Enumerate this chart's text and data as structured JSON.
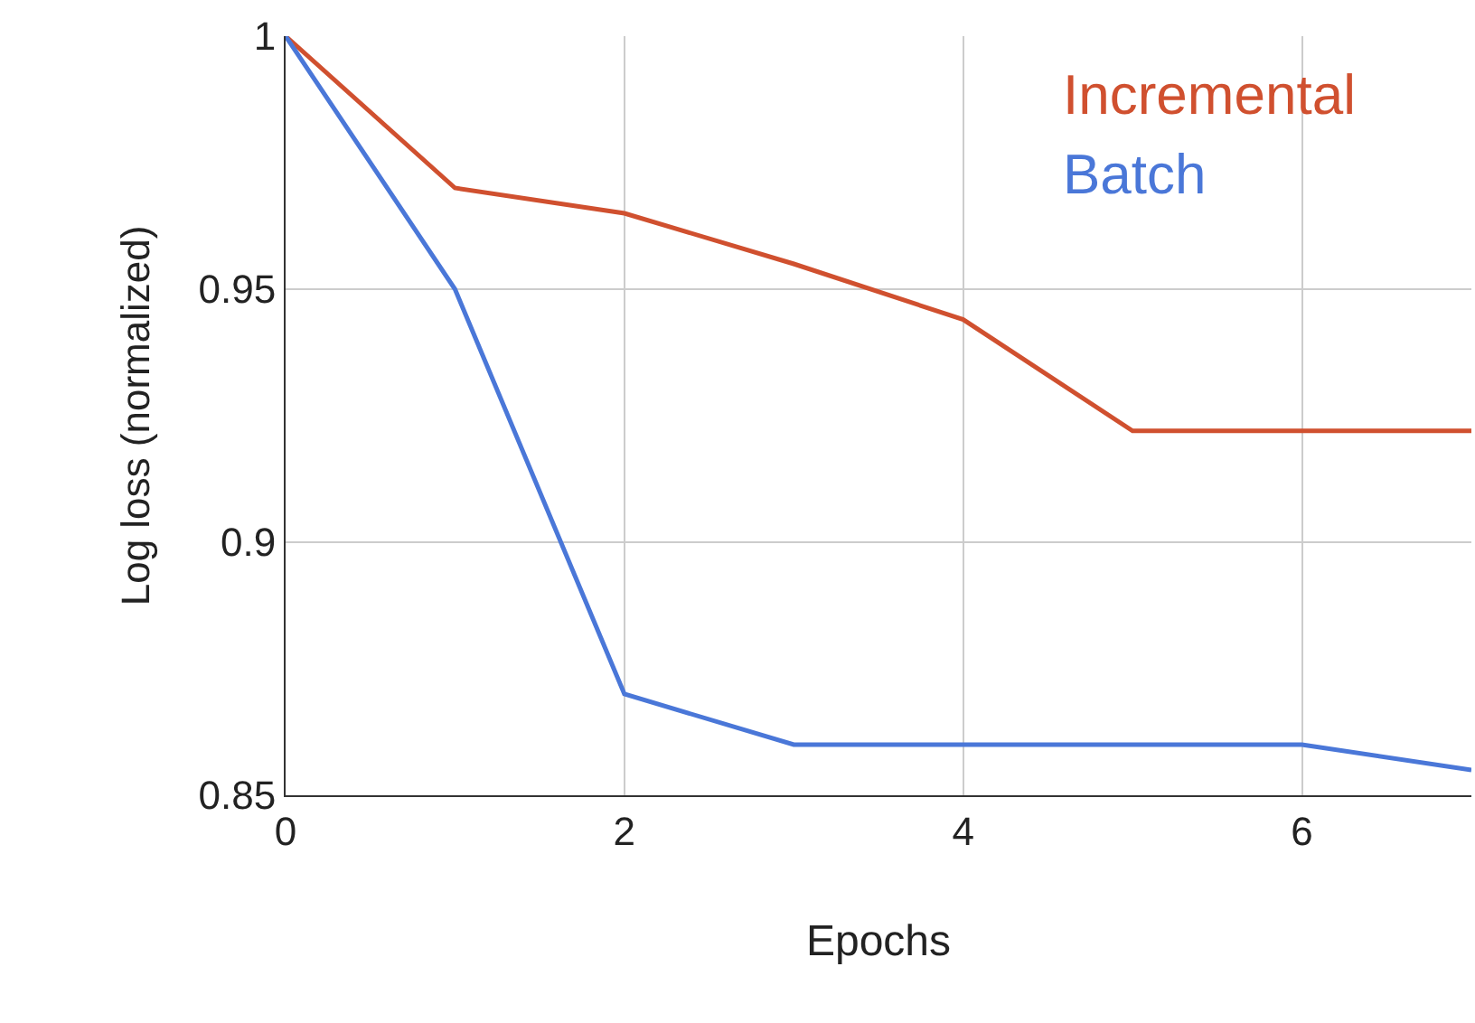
{
  "chart_data": {
    "type": "line",
    "xlabel": "Epochs",
    "ylabel": "Log loss (normalized)",
    "x": [
      0,
      1,
      2,
      3,
      4,
      5,
      6,
      7
    ],
    "series": [
      {
        "name": "Incremental",
        "color": "#d0502f",
        "values": [
          1,
          0.97,
          0.965,
          0.955,
          0.944,
          0.922,
          0.922,
          0.922
        ]
      },
      {
        "name": "Batch",
        "color": "#4a77d8",
        "values": [
          1,
          0.95,
          0.87,
          0.86,
          0.86,
          0.86,
          0.86,
          0.855
        ]
      }
    ],
    "xlim": [
      0,
      7
    ],
    "xticks": [
      0,
      2,
      4,
      6
    ],
    "ylim": [
      0.85,
      1
    ],
    "yticks": [
      0.85,
      0.9,
      0.95,
      1
    ],
    "grid": true,
    "legend": "top right",
    "marker": "none",
    "line_style": "solid"
  }
}
